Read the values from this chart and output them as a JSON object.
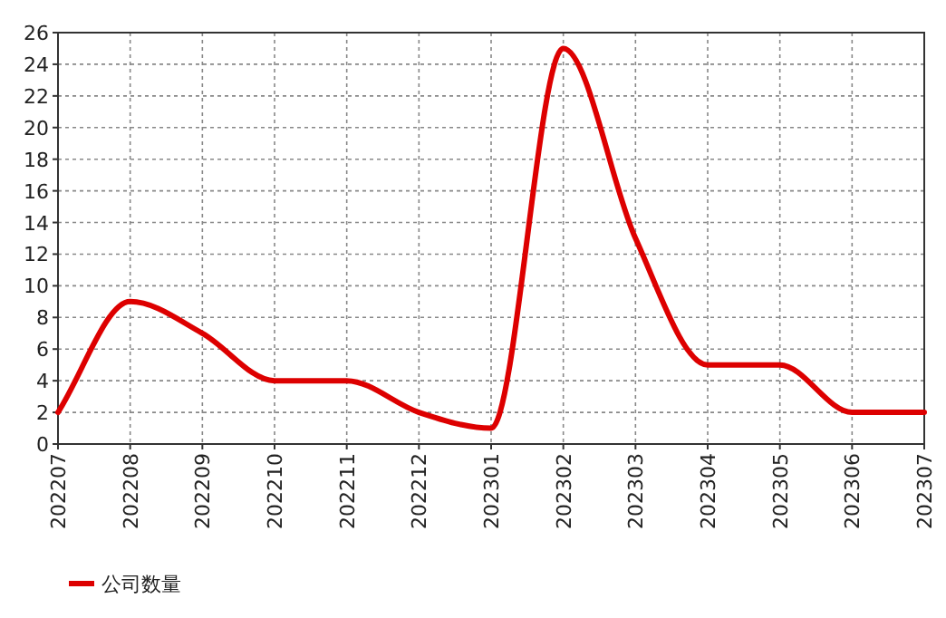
{
  "chart_data": {
    "type": "line",
    "categories": [
      "202207",
      "202208",
      "202209",
      "202210",
      "202211",
      "202212",
      "202301",
      "202302",
      "202303",
      "202304",
      "202305",
      "202306",
      "202307"
    ],
    "series": [
      {
        "name": "公司数量",
        "color": "#dd0000",
        "values": [
          2,
          9,
          7,
          4,
          4,
          2,
          1,
          25,
          13,
          5,
          5,
          2,
          2
        ]
      }
    ],
    "ylim": [
      0,
      26
    ],
    "yticks": [
      0,
      2,
      4,
      6,
      8,
      10,
      12,
      14,
      16,
      18,
      20,
      22,
      24,
      26
    ],
    "grid": true,
    "legend": "bottom left",
    "marker": "none",
    "line_style": "solid"
  }
}
